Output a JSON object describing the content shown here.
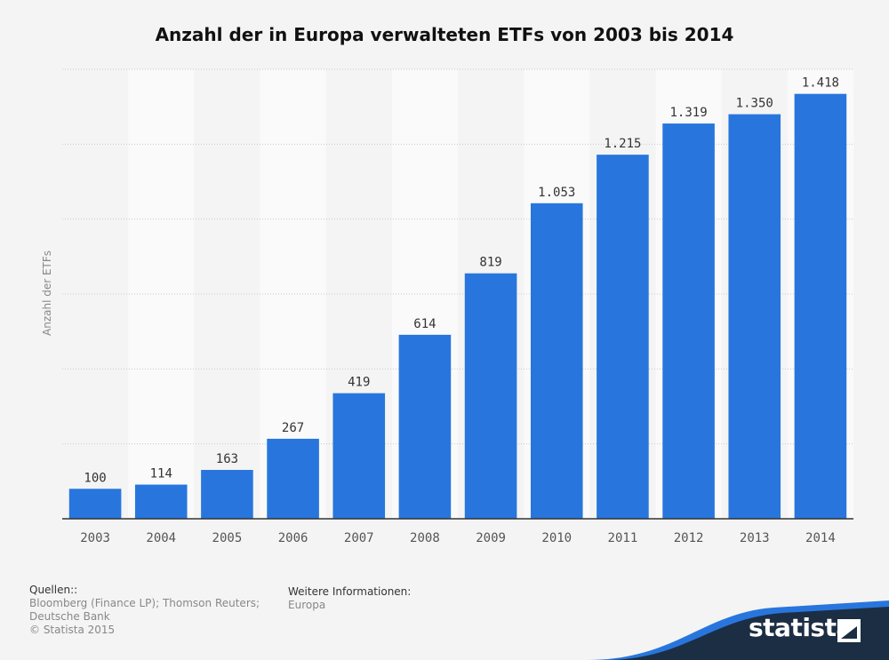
{
  "title": "Anzahl der in Europa verwalteten ETFs von 2003 bis 2014",
  "chart_data": {
    "type": "bar",
    "title": "Anzahl der in Europa verwalteten ETFs von 2003 bis 2014",
    "xlabel": "",
    "ylabel": "Anzahl der ETFs",
    "categories": [
      "2003",
      "2004",
      "2005",
      "2006",
      "2007",
      "2008",
      "2009",
      "2010",
      "2011",
      "2012",
      "2013",
      "2014"
    ],
    "values": [
      100,
      114,
      163,
      267,
      419,
      614,
      819,
      1053,
      1215,
      1319,
      1350,
      1418
    ],
    "value_labels": [
      "100",
      "114",
      "163",
      "267",
      "419",
      "614",
      "819",
      "1.053",
      "1.215",
      "1.319",
      "1.350",
      "1.418"
    ],
    "ylim": [
      0,
      1500
    ],
    "grid": true,
    "legend": "none",
    "bar_color": "#2876dd"
  },
  "footer": {
    "sources_heading": "Quellen::",
    "sources_text": "Bloomberg (Finance LP); Thomson Reuters; Deutsche Bank",
    "copyright": "© Statista 2015",
    "info_heading": "Weitere Informationen:",
    "info_text": "Europa"
  },
  "brand": {
    "name": "statista",
    "band_color": "#1c2e44",
    "accent_color": "#2876dd",
    "icon": "statista-logo-icon"
  }
}
